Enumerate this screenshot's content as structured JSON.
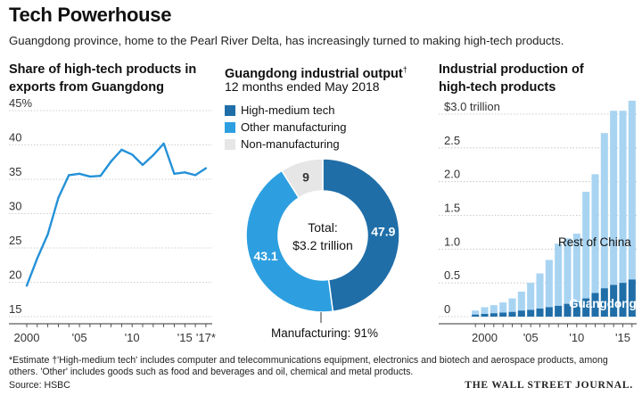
{
  "header": {
    "title": "Tech Powerhouse",
    "subtitle": "Guangdong province, home to the Pearl River Delta, has increasingly turned to making high-tech products."
  },
  "footer": {
    "footnote_line1": "*Estimate   †'High-medium tech' includes computer and telecommunications equipment, electronics and biotech and aerospace products, among",
    "footnote_line2": "others. 'Other' includes goods such as food and beverages and oil, chemical and metal products.",
    "source": "Source: HSBC",
    "brand": "THE WALL STREET JOURNAL."
  },
  "colors": {
    "dark_blue": "#1f6ea8",
    "mid_blue": "#2d9fe0",
    "light_blue": "#a8d4f2",
    "light_gray": "#e6e6e6",
    "line": "#2591d8",
    "grid": "#bdbdbd"
  },
  "chart_data": [
    {
      "type": "line",
      "title_line1": "Share of high-tech products in",
      "title_line2": "exports from Guangdong",
      "x": [
        2000,
        2001,
        2002,
        2003,
        2004,
        2005,
        2006,
        2007,
        2008,
        2009,
        2010,
        2011,
        2012,
        2013,
        2014,
        2015,
        2016,
        2017
      ],
      "values": [
        19.5,
        23.5,
        27,
        32.3,
        35.6,
        35.8,
        35.4,
        35.5,
        37.6,
        39.3,
        38.6,
        37.1,
        38.5,
        40.2,
        35.8,
        36.0,
        35.6,
        36.6
      ],
      "ylim": [
        15,
        45
      ],
      "y_ticks": [
        15,
        20,
        25,
        30,
        35,
        40,
        45
      ],
      "y_tick_labels": [
        "15",
        "20",
        "25",
        "30",
        "35",
        "40",
        "45%"
      ],
      "x_ticks": [
        2000,
        2005,
        2010,
        2015,
        2017
      ],
      "x_tick_labels": [
        "2000",
        "'05",
        "'10",
        "'15",
        "'17*"
      ],
      "grid": true
    },
    {
      "type": "pie",
      "title": "Guangdong industrial output",
      "title_mark": "†",
      "subtitle": "12 months ended May 2018",
      "slices": [
        {
          "label": "High-medium tech",
          "value": 47.9,
          "value_label": "47.9",
          "color": "#1f6ea8"
        },
        {
          "label": "Other manufacturing",
          "value": 43.1,
          "value_label": "43.1",
          "color": "#2d9fe0"
        },
        {
          "label": "Non-manufacturing",
          "value": 9,
          "value_label": "9",
          "color": "#e6e6e6"
        }
      ],
      "center_label_1": "Total:",
      "center_label_2": "$3.2 trillion",
      "bottom_annotation": "Manufacturing: 91%",
      "legend_position": "top"
    },
    {
      "type": "bar",
      "stacked": true,
      "title_line1": "Industrial production of",
      "title_line2": "high-tech products",
      "x": [
        1999,
        2000,
        2001,
        2002,
        2003,
        2004,
        2005,
        2006,
        2007,
        2008,
        2009,
        2010,
        2011,
        2012,
        2013,
        2014,
        2015,
        2016
      ],
      "series": [
        {
          "name": "Guangdong",
          "color": "#1f6ea8",
          "values": [
            0.03,
            0.04,
            0.05,
            0.06,
            0.07,
            0.09,
            0.1,
            0.12,
            0.14,
            0.16,
            0.19,
            0.21,
            0.27,
            0.35,
            0.42,
            0.47,
            0.5,
            0.55
          ]
        },
        {
          "name": "Rest of China",
          "color": "#a8d4f2",
          "values": [
            0.06,
            0.1,
            0.12,
            0.15,
            0.2,
            0.28,
            0.4,
            0.52,
            0.7,
            0.92,
            0.97,
            1.02,
            1.58,
            1.76,
            2.3,
            2.58,
            2.55,
            2.65
          ]
        }
      ],
      "ylim": [
        0,
        3.0
      ],
      "y_ticks": [
        0,
        0.5,
        1.0,
        1.5,
        2.0,
        2.5,
        3.0
      ],
      "y_tick_labels": [
        "0",
        "0.5",
        "1.0",
        "1.5",
        "2.0",
        "2.5",
        "$3.0 trillion"
      ],
      "x_ticks": [
        2000,
        2005,
        2010,
        2015
      ],
      "x_tick_labels": [
        "2000",
        "'05",
        "'10",
        "'15"
      ],
      "grid": true
    }
  ]
}
